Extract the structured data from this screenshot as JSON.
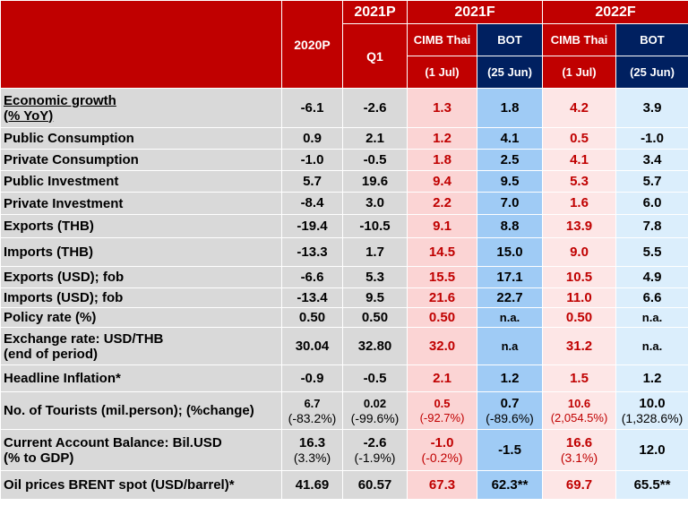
{
  "header": {
    "col_2020": "2020P",
    "group_2021p": "2021P",
    "col_q1": "Q1",
    "group_2021f": "2021F",
    "group_2022f": "2022F",
    "cimb": "CIMB Thai",
    "bot": "BOT",
    "cimb_date": "(1 Jul)",
    "bot_date": "(25 Jun)"
  },
  "rows": [
    {
      "label1": "Economic growth",
      "label2": "(% YoY)",
      "v2020": "-6.1",
      "q1": "-2.6",
      "c21": "1.3",
      "b21": "1.8",
      "c22": "4.2",
      "b22": "3.9"
    },
    {
      "label1": "Public Consumption",
      "v2020": "0.9",
      "q1": "2.1",
      "c21": "1.2",
      "b21": "4.1",
      "c22": "0.5",
      "b22": "-1.0"
    },
    {
      "label1": "Private Consumption",
      "v2020": "-1.0",
      "q1": "-0.5",
      "c21": "1.8",
      "b21": "2.5",
      "c22": "4.1",
      "b22": "3.4"
    },
    {
      "label1": "Public Investment",
      "v2020": "5.7",
      "q1": "19.6",
      "c21": "9.4",
      "b21": "9.5",
      "c22": "5.3",
      "b22": "5.7"
    },
    {
      "label1": "Private Investment",
      "v2020": "-8.4",
      "q1": "3.0",
      "c21": "2.2",
      "b21": "7.0",
      "c22": "1.6",
      "b22": "6.0"
    },
    {
      "label1": "Exports (THB)",
      "v2020": "-19.4",
      "q1": "-10.5",
      "c21": "9.1",
      "b21": "8.8",
      "c22": "13.9",
      "b22": "7.8"
    },
    {
      "label1": "Imports (THB)",
      "v2020": "-13.3",
      "q1": "1.7",
      "c21": "14.5",
      "b21": "15.0",
      "c22": "9.0",
      "b22": "5.5"
    },
    {
      "label1": "Exports (USD); fob",
      "v2020": "-6.6",
      "q1": "5.3",
      "c21": "15.5",
      "b21": "17.1",
      "c22": "10.5",
      "b22": "4.9"
    },
    {
      "label1": "Imports (USD); fob",
      "v2020": "-13.4",
      "q1": "9.5",
      "c21": "21.6",
      "b21": "22.7",
      "c22": "11.0",
      "b22": "6.6"
    },
    {
      "label1": "Policy rate (%)",
      "v2020": "0.50",
      "q1": "0.50",
      "c21": "0.50",
      "b21": "n.a.",
      "c22": "0.50",
      "b22": "n.a."
    },
    {
      "label1": "Exchange rate: USD/THB",
      "label2": "(end of period)",
      "v2020": "30.04",
      "q1": "32.80",
      "c21": "32.0",
      "b21": "n.a",
      "c22": "31.2",
      "b22": "n.a."
    },
    {
      "label1": "Headline Inflation*",
      "v2020": "-0.9",
      "q1": "-0.5",
      "c21": "2.1",
      "b21": "1.2",
      "c22": "1.5",
      "b22": "1.2"
    },
    {
      "label1": "No. of Tourists (mil.person); (%change)",
      "v2020": "6.7",
      "v2020s": "(-83.2%)",
      "q1": "0.02",
      "q1s": "(-99.6%)",
      "c21": "0.5",
      "c21s": "(-92.7%)",
      "b21": "0.7",
      "b21s": "(-89.6%)",
      "c22": "10.6",
      "c22s": "(2,054.5%)",
      "b22": "10.0",
      "b22s": "(1,328.6%)"
    },
    {
      "label1": "Current Account Balance: Bil.USD",
      "label2": "(% to GDP)",
      "v2020": "16.3",
      "v2020s": "(3.3%)",
      "q1": "-2.6",
      "q1s": "(-1.9%)",
      "c21": "-1.0",
      "c21s": "(-0.2%)",
      "b21": "-1.5",
      "c22": "16.6",
      "c22s": "(3.1%)",
      "b22": "12.0"
    },
    {
      "label1": "Oil prices BRENT spot (USD/barrel)*",
      "v2020": "41.69",
      "q1": "60.57",
      "c21": "67.3",
      "b21": "62.3**",
      "c22": "69.7",
      "b22": "65.5**"
    }
  ],
  "colors": {
    "red": "#c00000",
    "navy": "#002060",
    "grey": "#d9d9d9",
    "pink": "#fbd4d4",
    "blue": "#9fcbf5",
    "pink_light": "#fde6e6",
    "blue_light": "#dbeefc"
  }
}
